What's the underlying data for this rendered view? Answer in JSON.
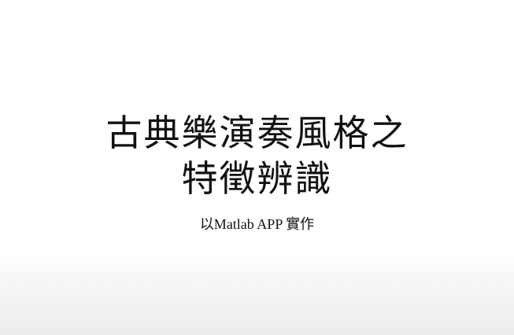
{
  "slide": {
    "title_line_1": "古典樂演奏風格之",
    "title_line_2": "特徵辨識",
    "subtitle": "以Matlab APP 實作"
  }
}
